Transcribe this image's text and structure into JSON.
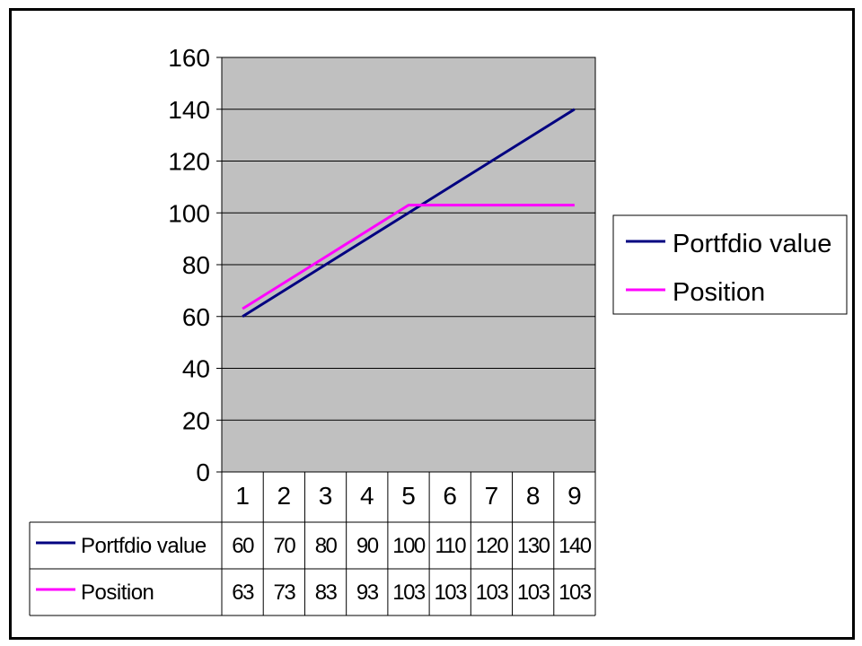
{
  "chart_data": {
    "type": "line",
    "categories": [
      "1",
      "2",
      "3",
      "4",
      "5",
      "6",
      "7",
      "8",
      "9"
    ],
    "series": [
      {
        "name": "Portfdio value",
        "color": "#000080",
        "values": [
          60,
          70,
          80,
          90,
          100,
          110,
          120,
          130,
          140
        ]
      },
      {
        "name": "Position",
        "color": "#FF00FF",
        "values": [
          63,
          73,
          83,
          93,
          103,
          103,
          103,
          103,
          103
        ]
      }
    ],
    "yticks": [
      "0",
      "20",
      "40",
      "60",
      "80",
      "100",
      "120",
      "140",
      "160"
    ],
    "ylim": [
      0,
      160
    ],
    "grid": true,
    "plot_background": "#C0C0C0",
    "legend": "right",
    "data_table": true
  }
}
